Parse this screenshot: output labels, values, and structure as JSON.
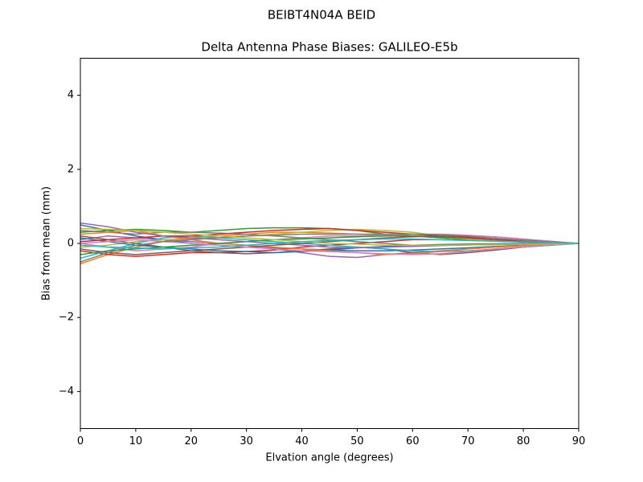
{
  "chart_data": {
    "type": "line",
    "suptitle": "BEIBT4N04A       BEID",
    "title": "Delta Antenna Phase Biases: GALILEO-E5b",
    "xlabel": "Elvation angle (degrees)",
    "ylabel": "Bias from mean (mm)",
    "xlim": [
      0,
      90
    ],
    "ylim": [
      -5,
      5
    ],
    "xticks": [
      0,
      10,
      20,
      30,
      40,
      50,
      60,
      70,
      80,
      90
    ],
    "yticks": [
      {
        "value": -4,
        "label": "−4"
      },
      {
        "value": -2,
        "label": "−2"
      },
      0,
      2,
      4
    ],
    "grid": false,
    "x": [
      0,
      5,
      10,
      15,
      20,
      25,
      30,
      35,
      40,
      45,
      50,
      55,
      60,
      65,
      70,
      75,
      80,
      85,
      90
    ],
    "series": [
      {
        "color": "#1f77b4",
        "values": [
          0.5,
          0.35,
          0.2,
          0.1,
          0.0,
          -0.05,
          -0.1,
          -0.12,
          -0.15,
          -0.18,
          -0.2,
          -0.2,
          -0.18,
          -0.15,
          -0.12,
          -0.08,
          -0.05,
          -0.02,
          0
        ]
      },
      {
        "color": "#ff7f0e",
        "values": [
          -0.55,
          -0.3,
          -0.1,
          0.05,
          0.15,
          0.2,
          0.25,
          0.3,
          0.3,
          0.28,
          0.25,
          0.22,
          0.2,
          0.18,
          0.15,
          0.1,
          0.07,
          0.03,
          0
        ]
      },
      {
        "color": "#2ca02c",
        "values": [
          0.3,
          0.35,
          0.38,
          0.35,
          0.3,
          0.35,
          0.4,
          0.42,
          0.42,
          0.4,
          0.35,
          0.25,
          0.2,
          0.15,
          0.1,
          0.07,
          0.04,
          0.02,
          0
        ]
      },
      {
        "color": "#d62728",
        "values": [
          -0.2,
          -0.3,
          -0.35,
          -0.3,
          -0.25,
          -0.25,
          -0.22,
          -0.18,
          -0.1,
          -0.05,
          0,
          0.05,
          0.1,
          0.1,
          0.08,
          0.06,
          0.04,
          0.02,
          0
        ]
      },
      {
        "color": "#9467bd",
        "values": [
          0.1,
          0.2,
          0.15,
          0.1,
          0.05,
          0,
          -0.05,
          -0.15,
          -0.25,
          -0.35,
          -0.38,
          -0.3,
          -0.25,
          -0.2,
          -0.15,
          -0.1,
          -0.06,
          -0.03,
          0
        ]
      },
      {
        "color": "#8c564b",
        "values": [
          0.2,
          0.1,
          0.0,
          -0.1,
          -0.2,
          -0.25,
          -0.28,
          -0.25,
          -0.2,
          -0.15,
          -0.1,
          -0.15,
          -0.25,
          -0.3,
          -0.25,
          -0.18,
          -0.1,
          -0.05,
          0
        ]
      },
      {
        "color": "#e377c2",
        "values": [
          0.0,
          -0.1,
          -0.2,
          -0.15,
          -0.1,
          0.0,
          0.05,
          0.1,
          0.15,
          0.2,
          0.2,
          0.22,
          0.25,
          0.25,
          0.22,
          0.18,
          0.12,
          0.06,
          0
        ]
      },
      {
        "color": "#7f7f7f",
        "values": [
          0.35,
          0.3,
          0.25,
          0.3,
          0.3,
          0.28,
          0.25,
          0.2,
          0.15,
          0.1,
          0.05,
          0.0,
          -0.05,
          -0.05,
          -0.04,
          -0.03,
          -0.02,
          -0.01,
          0
        ]
      },
      {
        "color": "#bcbd22",
        "values": [
          -0.1,
          -0.05,
          0.05,
          0.1,
          0.12,
          0.15,
          0.2,
          0.25,
          0.3,
          0.35,
          0.38,
          0.35,
          0.3,
          0.2,
          0.12,
          0.08,
          0.05,
          0.02,
          0
        ]
      },
      {
        "color": "#17becf",
        "values": [
          -0.4,
          -0.2,
          0.0,
          0.15,
          0.2,
          0.15,
          0.1,
          0.05,
          0,
          -0.05,
          -0.1,
          -0.15,
          -0.2,
          -0.22,
          -0.2,
          -0.15,
          -0.1,
          -0.05,
          0
        ]
      },
      {
        "color": "#1f77b4",
        "values": [
          0.15,
          0.05,
          -0.05,
          -0.1,
          -0.15,
          -0.2,
          -0.22,
          -0.25,
          -0.22,
          -0.18,
          -0.12,
          -0.08,
          -0.05,
          -0.03,
          -0.02,
          -0.01,
          0,
          0,
          0
        ]
      },
      {
        "color": "#ff7f0e",
        "values": [
          0.25,
          0.3,
          0.35,
          0.2,
          0.1,
          0.0,
          -0.05,
          -0.1,
          -0.15,
          -0.2,
          -0.25,
          -0.3,
          -0.28,
          -0.22,
          -0.15,
          -0.1,
          -0.06,
          -0.03,
          0
        ]
      },
      {
        "color": "#2ca02c",
        "values": [
          -0.3,
          -0.2,
          -0.15,
          -0.1,
          -0.05,
          0.0,
          0.05,
          0.1,
          0.12,
          0.15,
          0.18,
          0.2,
          0.2,
          0.18,
          0.15,
          0.1,
          0.06,
          0.03,
          0
        ]
      },
      {
        "color": "#d62728",
        "values": [
          0.05,
          0.1,
          0.15,
          0.2,
          0.2,
          0.25,
          0.3,
          0.35,
          0.38,
          0.4,
          0.35,
          0.3,
          0.25,
          0.2,
          0.15,
          0.1,
          0.06,
          0.03,
          0
        ]
      },
      {
        "color": "#9467bd",
        "values": [
          0.55,
          0.45,
          0.3,
          0.2,
          0.15,
          0.1,
          0.05,
          0.0,
          -0.05,
          -0.1,
          -0.12,
          -0.1,
          -0.08,
          -0.06,
          -0.04,
          -0.03,
          -0.02,
          -0.01,
          0
        ]
      },
      {
        "color": "#8c564b",
        "values": [
          -0.15,
          -0.25,
          -0.3,
          -0.25,
          -0.2,
          -0.15,
          -0.1,
          -0.05,
          0.0,
          0.05,
          0.1,
          0.15,
          0.18,
          0.2,
          0.18,
          0.14,
          0.09,
          0.04,
          0
        ]
      },
      {
        "color": "#e377c2",
        "values": [
          0.0,
          0.05,
          0.1,
          0.05,
          0.0,
          -0.05,
          -0.1,
          -0.15,
          -0.2,
          -0.22,
          -0.25,
          -0.28,
          -0.3,
          -0.28,
          -0.22,
          -0.15,
          -0.09,
          -0.04,
          0
        ]
      },
      {
        "color": "#7f7f7f",
        "values": [
          -0.5,
          -0.25,
          -0.05,
          0.05,
          0.1,
          0.15,
          0.2,
          0.22,
          0.25,
          0.25,
          0.25,
          0.25,
          0.25,
          0.24,
          0.2,
          0.14,
          0.08,
          0.04,
          0
        ]
      },
      {
        "color": "#bcbd22",
        "values": [
          0.4,
          0.38,
          0.35,
          0.3,
          0.25,
          0.2,
          0.15,
          0.1,
          0.05,
          0.0,
          -0.02,
          -0.05,
          -0.05,
          -0.05,
          -0.04,
          -0.03,
          -0.02,
          -0.01,
          0
        ]
      },
      {
        "color": "#17becf",
        "values": [
          -0.05,
          -0.1,
          -0.12,
          -0.15,
          -0.12,
          -0.1,
          -0.05,
          0.0,
          0.05,
          0.08,
          0.1,
          0.12,
          0.12,
          0.1,
          0.08,
          0.06,
          0.04,
          0.02,
          0
        ]
      }
    ]
  }
}
